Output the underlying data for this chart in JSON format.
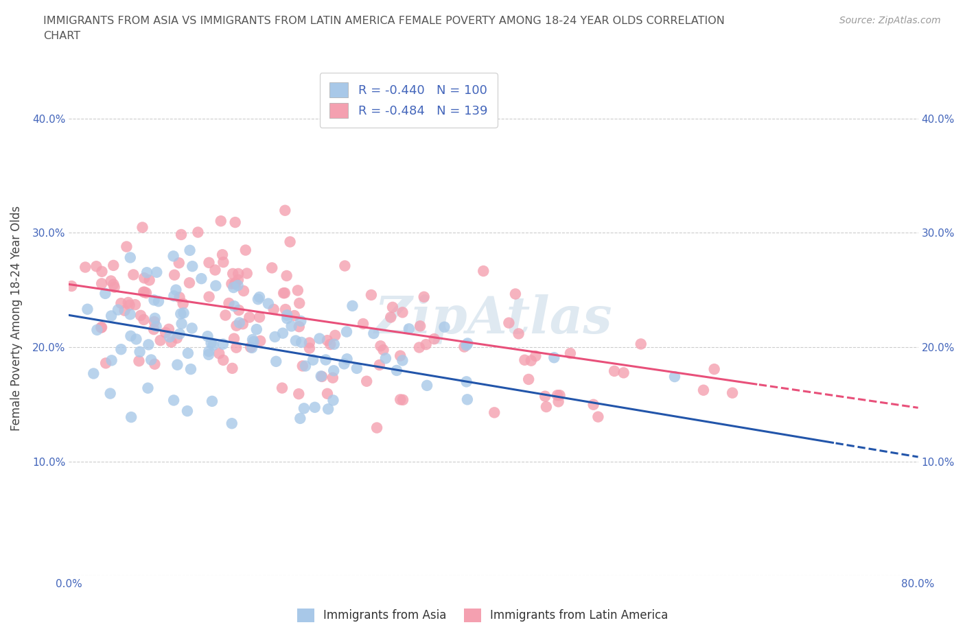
{
  "title_line1": "IMMIGRANTS FROM ASIA VS IMMIGRANTS FROM LATIN AMERICA FEMALE POVERTY AMONG 18-24 YEAR OLDS CORRELATION",
  "title_line2": "CHART",
  "source": "Source: ZipAtlas.com",
  "ylabel": "Female Poverty Among 18-24 Year Olds",
  "xlim": [
    0.0,
    0.8
  ],
  "ylim": [
    0.0,
    0.45
  ],
  "ytick_vals": [
    0.0,
    0.1,
    0.2,
    0.3,
    0.4
  ],
  "ytick_labels": [
    "",
    "10.0%",
    "20.0%",
    "30.0%",
    "40.0%"
  ],
  "xtick_vals": [
    0.0,
    0.1,
    0.2,
    0.3,
    0.4,
    0.5,
    0.6,
    0.7,
    0.8
  ],
  "xtick_labels": [
    "0.0%",
    "",
    "",
    "",
    "",
    "",
    "",
    "",
    "80.0%"
  ],
  "legend_asia": "R = -0.440   N = 100",
  "legend_latam": "R = -0.484   N = 139",
  "asia_color": "#a8c8e8",
  "latam_color": "#f4a0b0",
  "asia_line_color": "#2255aa",
  "latam_line_color": "#e8507a",
  "watermark": "ZipAtlas",
  "R_asia": -0.44,
  "N_asia": 100,
  "R_latam": -0.484,
  "N_latam": 139,
  "seed": 42,
  "background_color": "#ffffff",
  "grid_color": "#cccccc",
  "title_color": "#555555",
  "label_color": "#4466bb",
  "asia_intercept": 0.228,
  "asia_slope": -0.155,
  "latam_intercept": 0.255,
  "latam_slope": -0.135
}
